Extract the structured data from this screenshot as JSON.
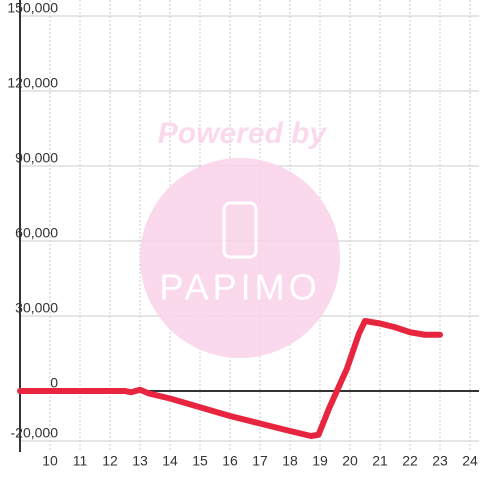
{
  "chart_data": {
    "type": "line",
    "watermark": {
      "line1": "Powered by",
      "line2": "PAPIMO"
    },
    "x": [
      9,
      12.5,
      12.7,
      13,
      13.3,
      14,
      15,
      16,
      17,
      18,
      18.7,
      18.95,
      19.3,
      19.9,
      20.3,
      20.5,
      21,
      21.5,
      22,
      22.5,
      23
    ],
    "series": [
      {
        "color": "#e8253f",
        "values": [
          0,
          0,
          -500,
          500,
          -1000,
          -3000,
          -6500,
          -10000,
          -13000,
          -16000,
          -18000,
          -17500,
          -7000,
          9000,
          23000,
          28000,
          27000,
          25500,
          23500,
          22500,
          22500
        ]
      }
    ],
    "xlim": [
      9,
      24.3
    ],
    "xticks": [
      10,
      11,
      12,
      13,
      14,
      15,
      16,
      17,
      18,
      19,
      20,
      21,
      22,
      23,
      24
    ],
    "ylim": [
      -20000,
      150000
    ],
    "yticks": [
      {
        "value": -20000,
        "label": "-20,000"
      },
      0,
      {
        "value": 30000,
        "label": "30,000"
      },
      {
        "value": 60000,
        "label": "60,000"
      },
      {
        "value": 90000,
        "label": "90,000"
      },
      {
        "value": 120000,
        "label": "120,000"
      },
      {
        "value": 150000,
        "label": "150,000"
      }
    ],
    "grid": true
  }
}
